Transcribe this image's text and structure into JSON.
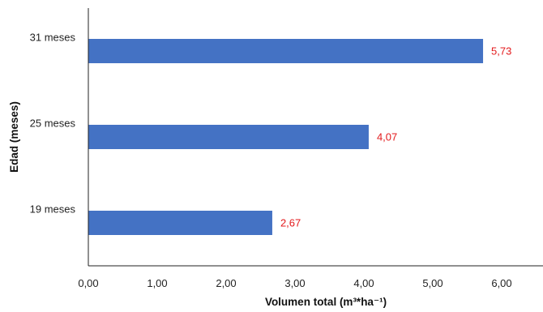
{
  "chart_data": {
    "type": "bar",
    "orientation": "horizontal",
    "categories": [
      "19 meses",
      "25 meses",
      "31 meses"
    ],
    "values": [
      2.67,
      4.07,
      5.73
    ],
    "data_labels": [
      "2,67",
      "4,07",
      "5,73"
    ],
    "xlabel": "Volumen total (m³*ha⁻¹)",
    "ylabel": "Edad (meses)",
    "xlim": [
      0,
      6.6
    ],
    "x_ticks": [
      0,
      1,
      2,
      3,
      4,
      5,
      6
    ],
    "x_tick_labels": [
      "0,00",
      "1,00",
      "2,00",
      "3,00",
      "4,00",
      "5,00",
      "6,00"
    ],
    "grid": false,
    "legend": "none",
    "colors": {
      "bar": "#4472C4",
      "data_label": "#E31A1C",
      "axis": "#222222"
    }
  }
}
